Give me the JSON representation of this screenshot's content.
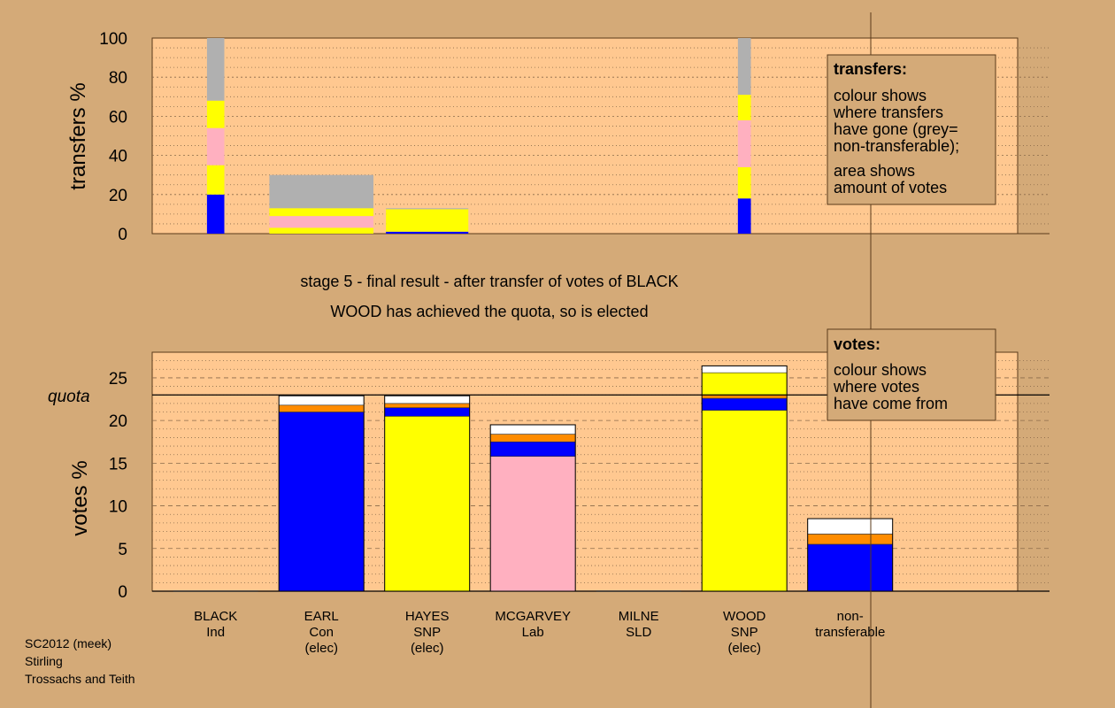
{
  "titles": {
    "line1": "stage 5 - final result - after transfer of votes of BLACK",
    "line2": "WOOD has achieved the quota, so is elected"
  },
  "footer": [
    "SC2012 (meek)",
    "Stirling",
    "Trossachs and Teith"
  ],
  "colors": {
    "blue": "#0000ff",
    "yellow": "#ffff00",
    "pink": "#ffb0c0",
    "orange": "#ff8c00",
    "white": "#ffffff",
    "grey": "#b0b0b0",
    "panel": "#ffc890",
    "background": "#d4aa78",
    "legend": "#d4aa78"
  },
  "candidates": [
    {
      "name": "BLACK",
      "party": "Ind",
      "status": ""
    },
    {
      "name": "EARL",
      "party": "Con",
      "status": "(elec)"
    },
    {
      "name": "HAYES",
      "party": "SNP",
      "status": "(elec)"
    },
    {
      "name": "MCGARVEY",
      "party": "Lab",
      "status": ""
    },
    {
      "name": "MILNE",
      "party": "SLD",
      "status": ""
    },
    {
      "name": "WOOD",
      "party": "SNP",
      "status": "(elec)"
    },
    {
      "name": "non-",
      "party": "transferable",
      "status": ""
    }
  ],
  "legends": {
    "transfers": {
      "title": "transfers:",
      "lines1": [
        "colour shows",
        "where transfers",
        "have gone (grey=",
        "non-transferable);"
      ],
      "lines2": [
        "area shows",
        "amount of votes"
      ]
    },
    "votes": {
      "title": "votes:",
      "lines": [
        "colour shows",
        "where votes",
        "have come from"
      ]
    }
  },
  "chart_data": [
    {
      "type": "bar",
      "name": "transfers",
      "ylabel": "transfers %",
      "ylim": [
        0,
        100
      ],
      "yticks": [
        0,
        20,
        40,
        60,
        80,
        100
      ],
      "bars": [
        {
          "slot": 0.6,
          "width": 0.2,
          "segments": [
            {
              "color": "blue",
              "value": 20
            },
            {
              "color": "yellow",
              "value": 15
            },
            {
              "color": "pink",
              "value": 19
            },
            {
              "color": "yellow",
              "value": 14
            },
            {
              "color": "grey",
              "value": 32
            }
          ]
        },
        {
          "slot": 1.6,
          "width": 1.2,
          "segments": [
            {
              "color": "yellow",
              "value": 3
            },
            {
              "color": "pink",
              "value": 6
            },
            {
              "color": "yellow",
              "value": 4
            },
            {
              "color": "grey",
              "value": 17
            }
          ]
        },
        {
          "slot": 2.6,
          "width": 0.95,
          "segments": [
            {
              "color": "blue",
              "value": 1
            },
            {
              "color": "yellow",
              "value": 11.5
            },
            {
              "color": "grey",
              "value": 0.5
            }
          ]
        },
        {
          "slot": 5.6,
          "width": 0.15,
          "segments": [
            {
              "color": "blue",
              "value": 18
            },
            {
              "color": "yellow",
              "value": 16
            },
            {
              "color": "pink",
              "value": 24
            },
            {
              "color": "yellow",
              "value": 13
            },
            {
              "color": "grey",
              "value": 29
            }
          ]
        }
      ]
    },
    {
      "type": "bar",
      "name": "votes",
      "ylabel": "votes %",
      "ylim": [
        0,
        28
      ],
      "yticks": [
        0,
        5,
        10,
        15,
        20,
        25
      ],
      "quota": 23,
      "quota_label": "quota",
      "bars": [
        {
          "candidate": "BLACK",
          "segments": []
        },
        {
          "candidate": "EARL",
          "segments": [
            {
              "color": "blue",
              "value": 21
            },
            {
              "color": "orange",
              "value": 0.8
            },
            {
              "color": "white",
              "value": 1.1
            }
          ]
        },
        {
          "candidate": "HAYES",
          "segments": [
            {
              "color": "yellow",
              "value": 20.5
            },
            {
              "color": "blue",
              "value": 1.0
            },
            {
              "color": "orange",
              "value": 0.5
            },
            {
              "color": "white",
              "value": 0.9
            }
          ]
        },
        {
          "candidate": "MCGARVEY",
          "segments": [
            {
              "color": "pink",
              "value": 15.8
            },
            {
              "color": "blue",
              "value": 1.7
            },
            {
              "color": "orange",
              "value": 0.9
            },
            {
              "color": "white",
              "value": 1.1
            }
          ]
        },
        {
          "candidate": "MILNE",
          "segments": []
        },
        {
          "candidate": "WOOD",
          "segments": [
            {
              "color": "yellow",
              "value": 21.2
            },
            {
              "color": "blue",
              "value": 1.4
            },
            {
              "color": "orange",
              "value": 0.4
            },
            {
              "color": "yellow",
              "value": 2.6
            },
            {
              "color": "white",
              "value": 0.8
            }
          ]
        },
        {
          "candidate": "non-transferable",
          "segments": [
            {
              "color": "blue",
              "value": 5.5
            },
            {
              "color": "orange",
              "value": 1.2
            },
            {
              "color": "white",
              "value": 1.8
            }
          ]
        }
      ]
    }
  ]
}
